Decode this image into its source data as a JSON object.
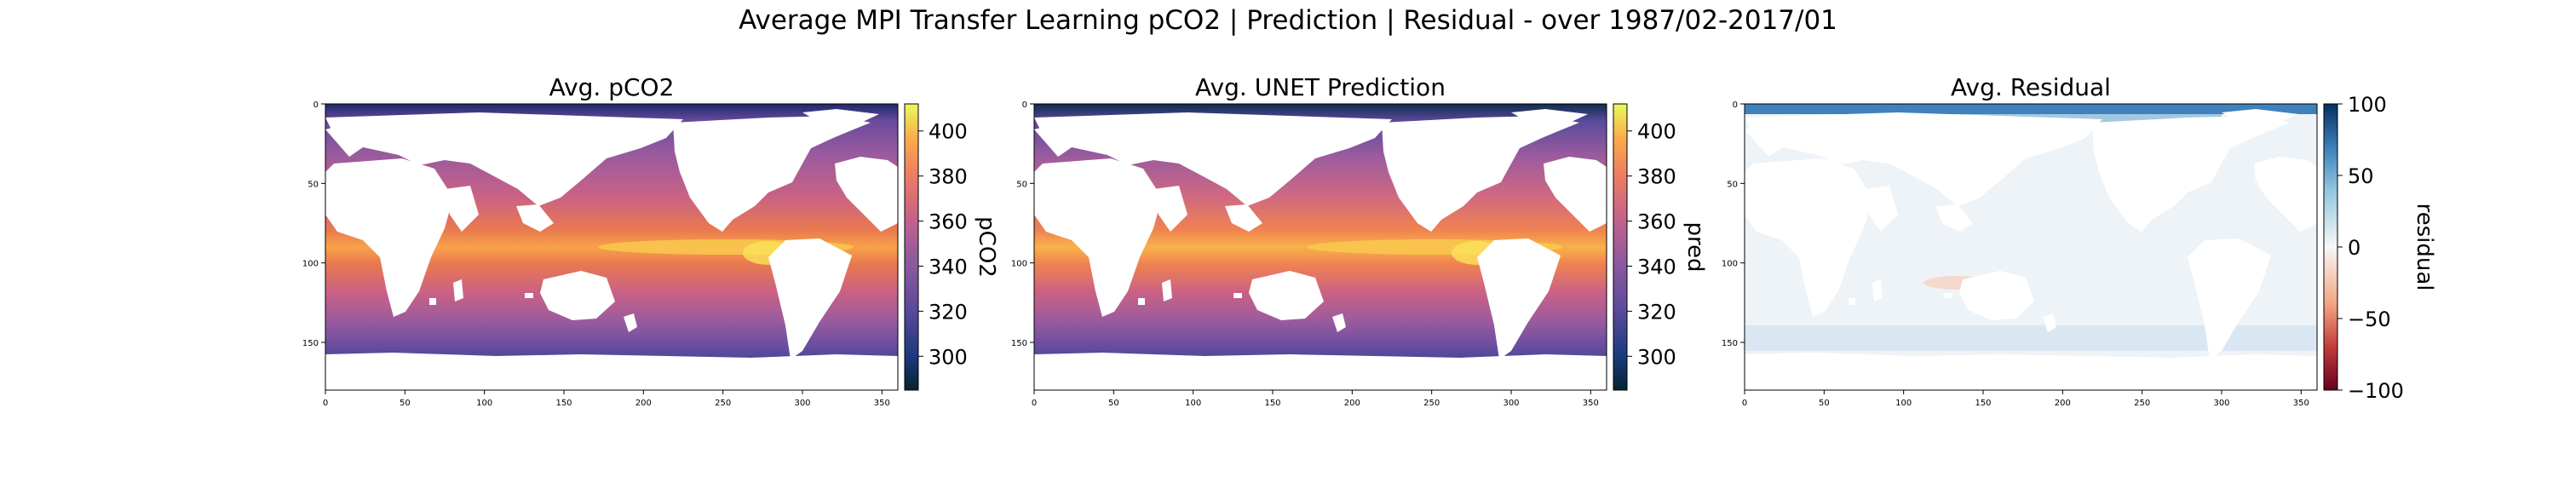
{
  "figure": {
    "suptitle": "Average MPI Transfer Learning pCO2 | Prediction | Residual - over 1987/02-2017/01"
  },
  "chart_data": [
    {
      "type": "heatmap",
      "title": "Avg. pCO2",
      "x_ticks": [
        0,
        50,
        100,
        150,
        200,
        250,
        300,
        350
      ],
      "y_ticks": [
        0,
        50,
        100,
        150
      ],
      "xlim": [
        0,
        360
      ],
      "ylim": [
        180,
        0
      ],
      "colorbar": {
        "label": "pCO2",
        "ticks": [
          300,
          320,
          340,
          360,
          380,
          400
        ],
        "range": [
          285,
          412
        ],
        "cmap": "thermal"
      },
      "land_color": "#ffffff"
    },
    {
      "type": "heatmap",
      "title": "Avg. UNET Prediction",
      "x_ticks": [
        0,
        50,
        100,
        150,
        200,
        250,
        300,
        350
      ],
      "y_ticks": [
        0,
        50,
        100,
        150
      ],
      "xlim": [
        0,
        360
      ],
      "ylim": [
        180,
        0
      ],
      "colorbar": {
        "label": "pred",
        "ticks": [
          300,
          320,
          340,
          360,
          380,
          400
        ],
        "range": [
          285,
          412
        ],
        "cmap": "thermal"
      },
      "land_color": "#ffffff"
    },
    {
      "type": "heatmap",
      "title": "Avg. Residual",
      "x_ticks": [
        0,
        50,
        100,
        150,
        200,
        250,
        300,
        350
      ],
      "y_ticks": [
        0,
        50,
        100,
        150
      ],
      "xlim": [
        0,
        360
      ],
      "ylim": [
        180,
        0
      ],
      "colorbar": {
        "label": "residual",
        "ticks": [
          -100,
          -50,
          0,
          50,
          100
        ],
        "range": [
          -100,
          100
        ],
        "cmap": "RdBu"
      },
      "land_color": "#ffffff"
    }
  ]
}
